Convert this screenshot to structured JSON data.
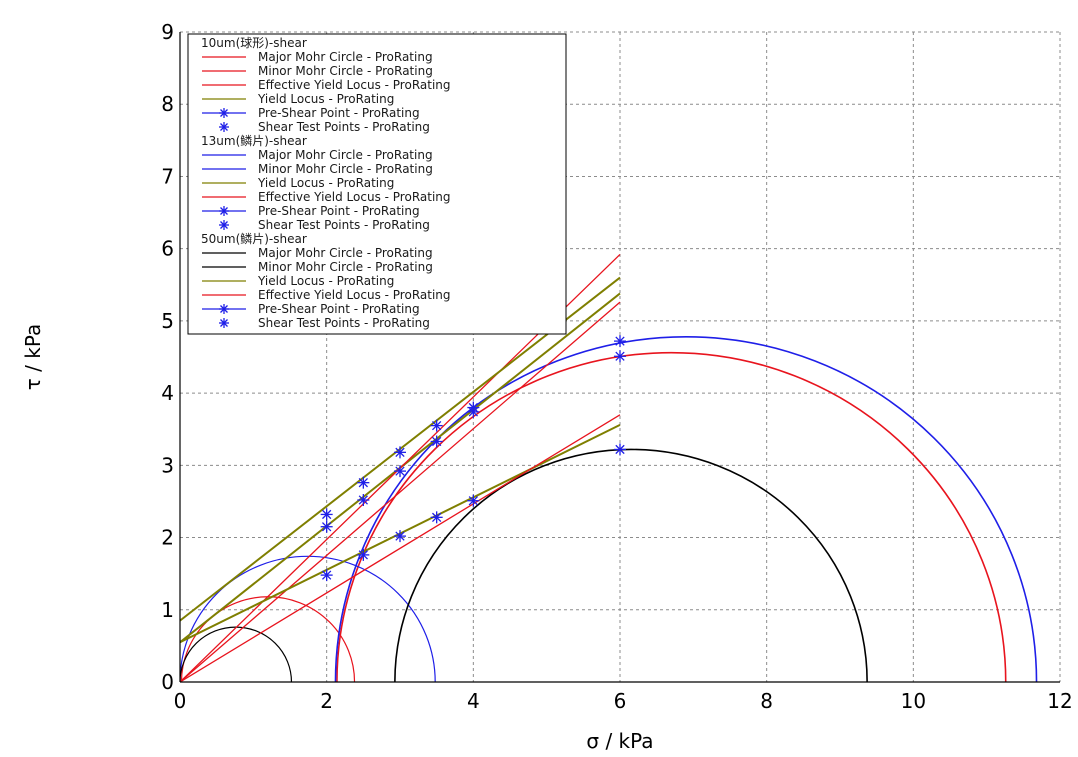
{
  "chart_data": {
    "type": "line",
    "xlabel": "σ / kPa",
    "ylabel": "τ / kPa",
    "xlim": [
      0,
      12
    ],
    "ylim": [
      0,
      9
    ],
    "xticks": [
      0,
      2,
      4,
      6,
      8,
      10,
      12
    ],
    "yticks": [
      0,
      1,
      2,
      3,
      4,
      5,
      6,
      7,
      8,
      9
    ],
    "grid": true,
    "legend_position": "top-left",
    "groups": [
      {
        "name": "10um(球形)-shear",
        "entries": [
          {
            "label": "Major Mohr Circle - ProRating",
            "color": "#e8141e",
            "kind": "line"
          },
          {
            "label": "Minor Mohr Circle - ProRating",
            "color": "#e8141e",
            "kind": "line"
          },
          {
            "label": "Effective Yield Locus - ProRating",
            "color": "#e8141e",
            "kind": "line"
          },
          {
            "label": "Yield Locus - ProRating",
            "color": "#7f7f00",
            "kind": "line"
          },
          {
            "label": "Pre-Shear Point - ProRating",
            "color": "#1f1fe8",
            "kind": "line-star"
          },
          {
            "label": "Shear Test Points - ProRating",
            "color": "#1f1fe8",
            "kind": "star"
          }
        ]
      },
      {
        "name": "13um(鳞片)-shear",
        "entries": [
          {
            "label": "Major Mohr Circle - ProRating",
            "color": "#1f1fe8",
            "kind": "line"
          },
          {
            "label": "Minor Mohr Circle - ProRating",
            "color": "#1f1fe8",
            "kind": "line"
          },
          {
            "label": "Yield Locus - ProRating",
            "color": "#7f7f00",
            "kind": "line"
          },
          {
            "label": "Effective Yield Locus - ProRating",
            "color": "#e8141e",
            "kind": "line"
          },
          {
            "label": "Pre-Shear Point - ProRating",
            "color": "#1f1fe8",
            "kind": "line-star"
          },
          {
            "label": "Shear Test Points - ProRating",
            "color": "#1f1fe8",
            "kind": "star"
          }
        ]
      },
      {
        "name": "50um(鳞片)-shear",
        "entries": [
          {
            "label": "Major Mohr Circle - ProRating",
            "color": "#000000",
            "kind": "line"
          },
          {
            "label": "Minor Mohr Circle - ProRating",
            "color": "#000000",
            "kind": "line"
          },
          {
            "label": "Yield Locus - ProRating",
            "color": "#7f7f00",
            "kind": "line"
          },
          {
            "label": "Effective Yield Locus - ProRating",
            "color": "#e8141e",
            "kind": "line"
          },
          {
            "label": "Pre-Shear Point - ProRating",
            "color": "#1f1fe8",
            "kind": "line-star"
          },
          {
            "label": "Shear Test Points - ProRating",
            "color": "#1f1fe8",
            "kind": "star"
          }
        ]
      }
    ],
    "circles": [
      {
        "group": "10um",
        "name": "Major Mohr Circle",
        "center": 6.7,
        "radius": 4.56,
        "color": "#e8141e"
      },
      {
        "group": "10um",
        "name": "Minor Mohr Circle",
        "center": 1.2,
        "radius": 1.18,
        "color": "#e8141e"
      },
      {
        "group": "13um",
        "name": "Major Mohr Circle",
        "center": 6.9,
        "radius": 4.78,
        "color": "#1f1fe8"
      },
      {
        "group": "13um",
        "name": "Minor Mohr Circle",
        "center": 1.74,
        "radius": 1.74,
        "color": "#1f1fe8"
      },
      {
        "group": "50um",
        "name": "Major Mohr Circle",
        "center": 6.15,
        "radius": 3.22,
        "color": "#000000"
      },
      {
        "group": "50um",
        "name": "Minor Mohr Circle",
        "center": 0.76,
        "radius": 0.76,
        "color": "#000000"
      }
    ],
    "lines": [
      {
        "group": "10um",
        "name": "Yield Locus",
        "color": "#7f7f00",
        "x": [
          0,
          6
        ],
        "y": [
          0.55,
          5.38
        ]
      },
      {
        "group": "10um",
        "name": "Effective Yield Locus",
        "color": "#e8141e",
        "x": [
          0,
          6
        ],
        "y": [
          0,
          5.92
        ]
      },
      {
        "group": "13um",
        "name": "Yield Locus",
        "color": "#7f7f00",
        "x": [
          0,
          6
        ],
        "y": [
          0.85,
          5.6
        ]
      },
      {
        "group": "13um",
        "name": "Effective Yield Locus",
        "color": "#e8141e",
        "x": [
          0,
          6
        ],
        "y": [
          0,
          5.26
        ]
      },
      {
        "group": "50um",
        "name": "Yield Locus",
        "color": "#7f7f00",
        "x": [
          0,
          6
        ],
        "y": [
          0.55,
          3.56
        ]
      },
      {
        "group": "50um",
        "name": "Effective Yield Locus",
        "color": "#e8141e",
        "x": [
          0,
          6
        ],
        "y": [
          0,
          3.7
        ]
      }
    ],
    "points": [
      {
        "group": "10um",
        "name": "Pre-Shear Point",
        "x": 6,
        "y": 4.51
      },
      {
        "group": "10um",
        "name": "Shear Test Points",
        "x": [
          2,
          2.5,
          3,
          3.5,
          4
        ],
        "y": [
          2.15,
          2.52,
          2.92,
          3.33,
          3.74
        ]
      },
      {
        "group": "13um",
        "name": "Pre-Shear Point",
        "x": 6,
        "y": 4.72
      },
      {
        "group": "13um",
        "name": "Shear Test Points",
        "x": [
          2,
          2.5,
          3,
          3.5,
          4
        ],
        "y": [
          2.32,
          2.76,
          3.18,
          3.55,
          3.8
        ]
      },
      {
        "group": "50um",
        "name": "Pre-Shear Point",
        "x": 6,
        "y": 3.22
      },
      {
        "group": "50um",
        "name": "Shear Test Points",
        "x": [
          2,
          2.5,
          3,
          3.5,
          4
        ],
        "y": [
          1.48,
          1.76,
          2.02,
          2.28,
          2.51
        ]
      }
    ]
  }
}
